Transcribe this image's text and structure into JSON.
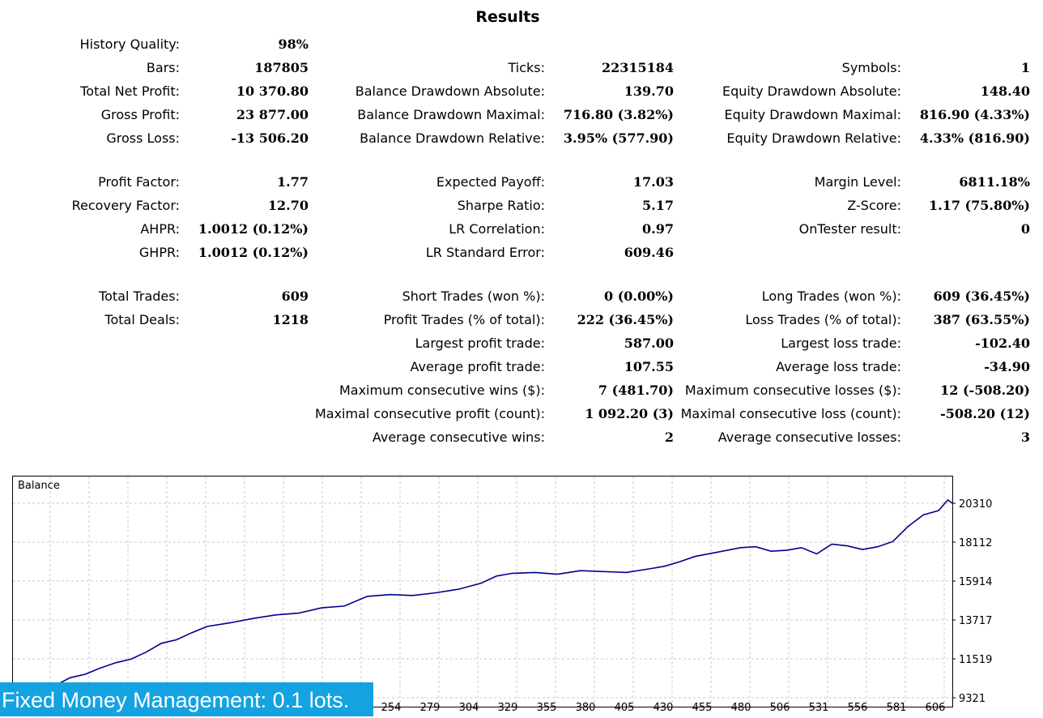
{
  "title": "Results",
  "metrics": [
    {
      "label": "History Quality:",
      "value": "98%"
    },
    {
      "label": "Bars:",
      "value": "187805"
    },
    {
      "label": "Ticks:",
      "value": "22315184"
    },
    {
      "label": "Symbols:",
      "value": "1"
    },
    {
      "label": "Total Net Profit:",
      "value": "10 370.80"
    },
    {
      "label": "Balance Drawdown Absolute:",
      "value": "139.70"
    },
    {
      "label": "Equity Drawdown Absolute:",
      "value": "148.40"
    },
    {
      "label": "Gross Profit:",
      "value": "23 877.00"
    },
    {
      "label": "Balance Drawdown Maximal:",
      "value": "716.80 (3.82%)"
    },
    {
      "label": "Equity Drawdown Maximal:",
      "value": "816.90 (4.33%)"
    },
    {
      "label": "Gross Loss:",
      "value": "-13 506.20"
    },
    {
      "label": "Balance Drawdown Relative:",
      "value": "3.95% (577.90)"
    },
    {
      "label": "Equity Drawdown Relative:",
      "value": "4.33% (816.90)"
    },
    {
      "label": "Profit Factor:",
      "value": "1.77"
    },
    {
      "label": "Expected Payoff:",
      "value": "17.03"
    },
    {
      "label": "Margin Level:",
      "value": "6811.18%"
    },
    {
      "label": "Recovery Factor:",
      "value": "12.70"
    },
    {
      "label": "Sharpe Ratio:",
      "value": "5.17"
    },
    {
      "label": "Z-Score:",
      "value": "1.17 (75.80%)"
    },
    {
      "label": "AHPR:",
      "value": "1.0012 (0.12%)"
    },
    {
      "label": "LR Correlation:",
      "value": "0.97"
    },
    {
      "label": "OnTester result:",
      "value": "0"
    },
    {
      "label": "GHPR:",
      "value": "1.0012 (0.12%)"
    },
    {
      "label": "LR Standard Error:",
      "value": "609.46"
    },
    {
      "label": "Total Trades:",
      "value": "609"
    },
    {
      "label": "Short Trades (won %):",
      "value": "0 (0.00%)"
    },
    {
      "label": "Long Trades (won %):",
      "value": "609 (36.45%)"
    },
    {
      "label": "Total Deals:",
      "value": "1218"
    },
    {
      "label": "Profit Trades (% of total):",
      "value": "222 (36.45%)"
    },
    {
      "label": "Loss Trades (% of total):",
      "value": "387 (63.55%)"
    },
    {
      "label": "Largest profit trade:",
      "value": "587.00"
    },
    {
      "label": "Largest loss trade:",
      "value": "-102.40"
    },
    {
      "label": "Average profit trade:",
      "value": "107.55"
    },
    {
      "label": "Average loss trade:",
      "value": "-34.90"
    },
    {
      "label": "Maximum consecutive wins ($):",
      "value": "7 (481.70)"
    },
    {
      "label": "Maximum consecutive losses ($):",
      "value": "12 (-508.20)"
    },
    {
      "label": "Maximal consecutive profit (count):",
      "value": "1 092.20 (3)"
    },
    {
      "label": "Maximal consecutive loss (count):",
      "value": "-508.20 (12)"
    },
    {
      "label": "Average consecutive wins:",
      "value": "2"
    },
    {
      "label": "Average consecutive losses:",
      "value": "3"
    }
  ],
  "chart_data": {
    "type": "line",
    "title": "Balance",
    "line_color": "#00008b",
    "grid": true,
    "x_ticks": [
      "254",
      "279",
      "304",
      "329",
      "355",
      "380",
      "405",
      "430",
      "455",
      "480",
      "506",
      "531",
      "556",
      "581",
      "606"
    ],
    "y_ticks": [
      "20310",
      "18112",
      "15914",
      "13717",
      "11519",
      "9321"
    ],
    "xlim": [
      0,
      609
    ],
    "ylim": [
      9321,
      21000
    ],
    "series": [
      {
        "x": [
          0,
          10,
          20,
          30,
          40,
          50,
          60,
          70,
          80,
          90,
          100,
          110,
          120,
          135,
          150,
          165,
          180,
          195,
          210,
          225,
          240,
          255,
          270,
          285,
          300,
          310,
          320,
          335,
          350,
          365,
          380,
          395,
          410,
          420,
          430,
          440,
          455,
          470,
          480,
          490,
          500,
          510,
          520,
          530,
          540,
          550,
          560,
          570,
          580,
          590,
          600,
          606,
          609
        ],
        "y": [
          9321,
          9600,
          10000,
          10450,
          10650,
          11000,
          11300,
          11500,
          11900,
          12400,
          12600,
          13000,
          13350,
          13550,
          13800,
          14000,
          14100,
          14400,
          14500,
          15050,
          15150,
          15100,
          15250,
          15450,
          15800,
          16200,
          16350,
          16400,
          16300,
          16500,
          16450,
          16400,
          16600,
          16750,
          17000,
          17300,
          17550,
          17800,
          17850,
          17600,
          17650,
          17800,
          17450,
          18000,
          17900,
          17700,
          17850,
          18150,
          19000,
          19650,
          19900,
          20500,
          20310
        ]
      }
    ]
  },
  "banner_text": "Fixed Money Management: 0.1 lots."
}
